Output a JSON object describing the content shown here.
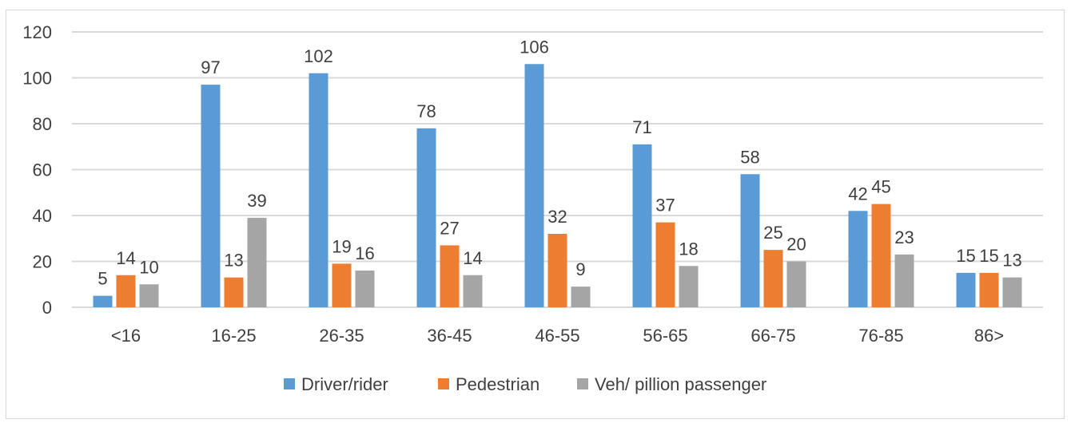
{
  "chart_data": {
    "type": "bar",
    "categories": [
      "<16",
      "16-25",
      "26-35",
      "36-45",
      "46-55",
      "56-65",
      "66-75",
      "76-85",
      "86>"
    ],
    "series": [
      {
        "name": "Driver/rider",
        "color": "#5b9bd5",
        "values": [
          5,
          97,
          102,
          78,
          106,
          71,
          58,
          42,
          15
        ]
      },
      {
        "name": "Pedestrian",
        "color": "#ed7d31",
        "values": [
          14,
          13,
          19,
          27,
          32,
          37,
          25,
          45,
          15
        ]
      },
      {
        "name": "Veh/ pillion passenger",
        "color": "#a5a5a5",
        "values": [
          10,
          39,
          16,
          14,
          9,
          18,
          20,
          23,
          13
        ]
      }
    ],
    "ylim": [
      0,
      120
    ],
    "yticks": [
      0,
      20,
      40,
      60,
      80,
      100,
      120
    ],
    "grid": true,
    "data_labels": true,
    "legend_position": "bottom"
  }
}
